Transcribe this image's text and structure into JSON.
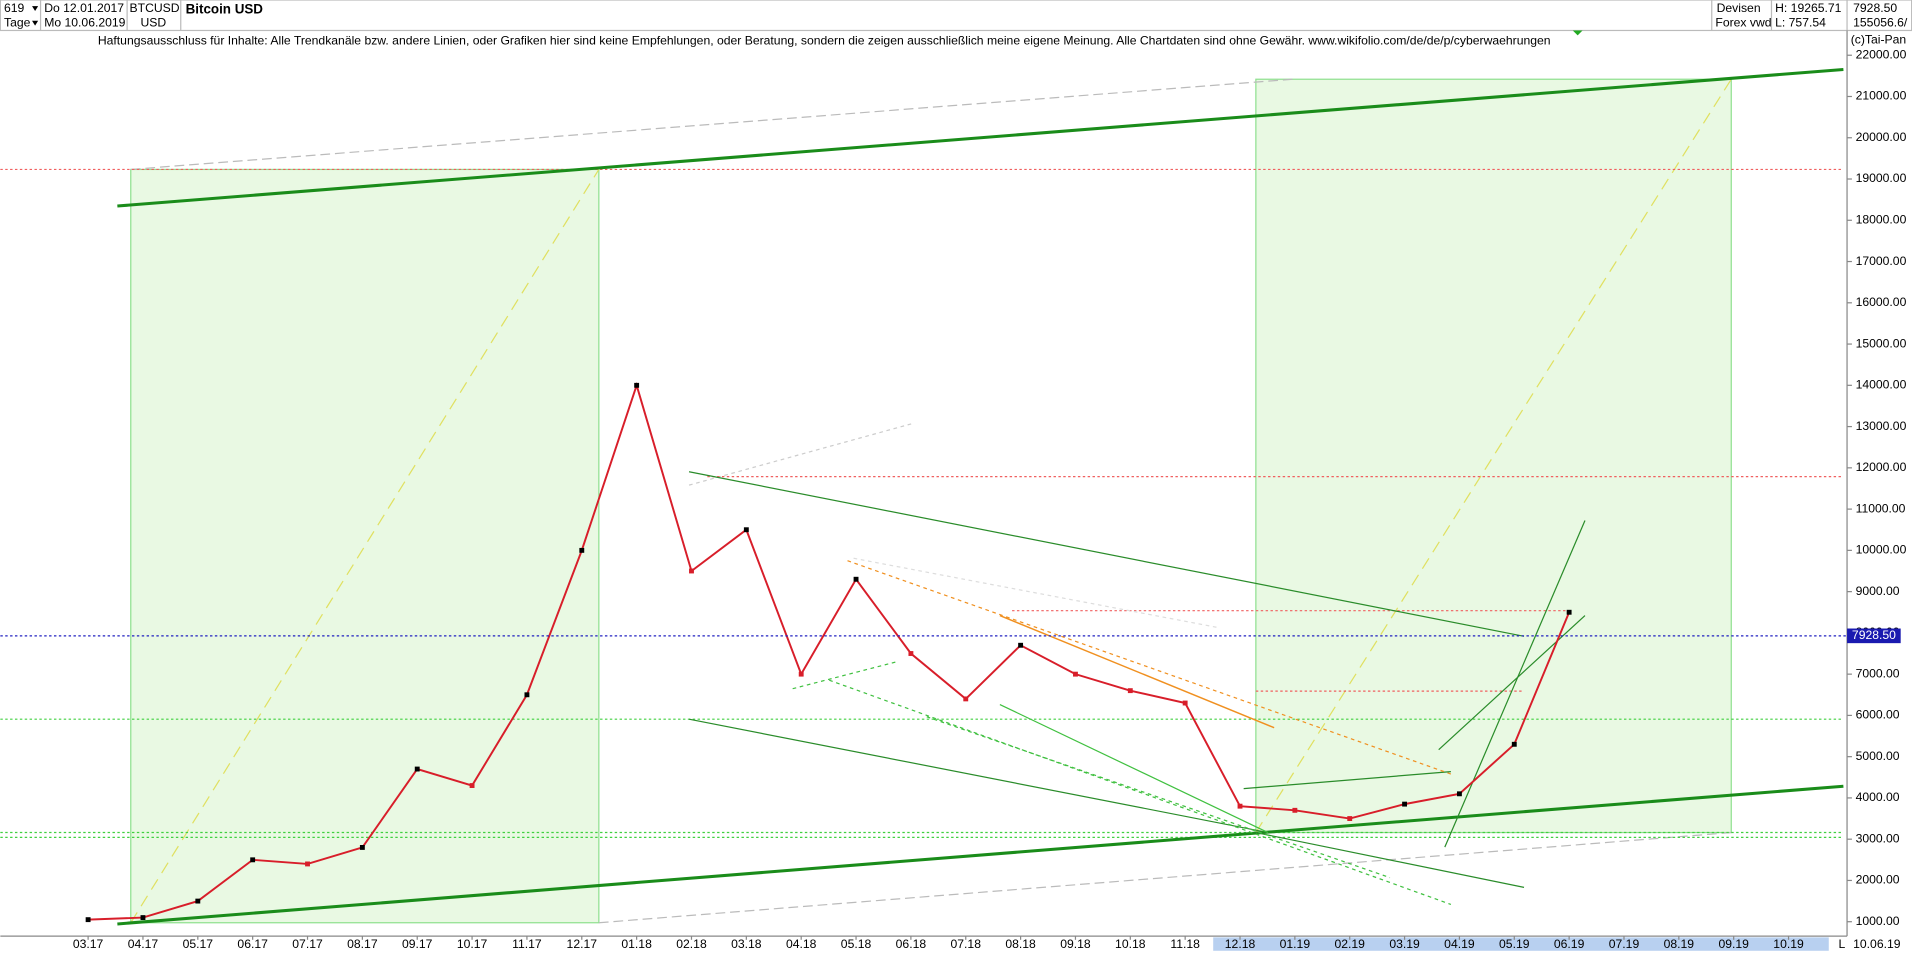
{
  "header": {
    "id": "619",
    "date_from": "Do 12.01.2017",
    "period": "Tage",
    "date_to": "Mo 10.06.2019",
    "currency": "USD",
    "market": "Devisen",
    "source": "Forex vwd",
    "high": "H: 19265.71",
    "low": "L: 757.54",
    "volume": "155056.6/",
    "disclaimer": "Haftungsausschluss für Inhalte: Alle Trendkanäle bzw. andere Linien, oder Grafiken hier sind keine Empfehlungen, oder Beratung, sondern die zeigen ausschließlich meine eigene Meinung. Alle Chartdaten sind ohne Gewähr.  www.wikifolio.com/de/de/p/cyberwaehrungen",
    "copyright": "(c)Tai-Pan",
    "end_date": "10.06.19",
    "scale_mode": "L"
  },
  "chart_data": {
    "type": "line",
    "title": "Bitcoin USD",
    "categories": [
      "03.17",
      "04.17",
      "05.17",
      "06.17",
      "07.17",
      "08.17",
      "09.17",
      "10.17",
      "11.17",
      "12.17",
      "01.18",
      "02.18",
      "03.18",
      "04.18",
      "05.18",
      "06.18",
      "07.18",
      "08.18",
      "09.18",
      "10.18",
      "11.18",
      "12.18",
      "01.19",
      "02.19",
      "03.19",
      "04.19",
      "05.19",
      "06.19",
      "07.19",
      "08.19",
      "09.19",
      "10.19"
    ],
    "series": [
      {
        "name": "BTCUSD",
        "color": "#d81e2a",
        "values": [
          1050,
          1100,
          1500,
          2500,
          2400,
          2800,
          4700,
          4300,
          6500,
          10000,
          14000,
          9500,
          10500,
          7000,
          9300,
          7500,
          6400,
          7700,
          7000,
          6600,
          6300,
          3800,
          3700,
          3500,
          3850,
          4100,
          5300,
          8500,
          null,
          null,
          null,
          null
        ]
      }
    ],
    "ylim": [
      650,
      22600
    ],
    "yticks": [
      {
        "value": 1000,
        "label": "1000.00"
      },
      {
        "value": 2000,
        "label": "2000.00"
      },
      {
        "value": 3000,
        "label": "3000.00"
      },
      {
        "value": 4000,
        "label": "4000.00"
      },
      {
        "value": 5000,
        "label": "5000.00"
      },
      {
        "value": 6000,
        "label": "6000.00"
      },
      {
        "value": 7000,
        "label": "7000.00"
      },
      {
        "value": 8000,
        "label": "8000.00"
      },
      {
        "value": 9000,
        "label": "9000.00"
      },
      {
        "value": 10000,
        "label": "10000.00"
      },
      {
        "value": 11000,
        "label": "11000.00"
      },
      {
        "value": 12000,
        "label": "12000.00"
      },
      {
        "value": 13000,
        "label": "13000.00"
      },
      {
        "value": 14000,
        "label": "14000.00"
      },
      {
        "value": 15000,
        "label": "15000.00"
      },
      {
        "value": 16000,
        "label": "16000.00"
      },
      {
        "value": 17000,
        "label": "17000.00"
      },
      {
        "value": 18000,
        "label": "18000.00"
      },
      {
        "value": 19000,
        "label": "19000.00"
      },
      {
        "value": 20000,
        "label": "20000.00"
      },
      {
        "value": 21000,
        "label": "21000.00"
      },
      {
        "value": 22000,
        "label": "22000.00"
      }
    ],
    "last_price": {
      "value": 7928.5,
      "label": "7928.50"
    },
    "grid": false
  }
}
